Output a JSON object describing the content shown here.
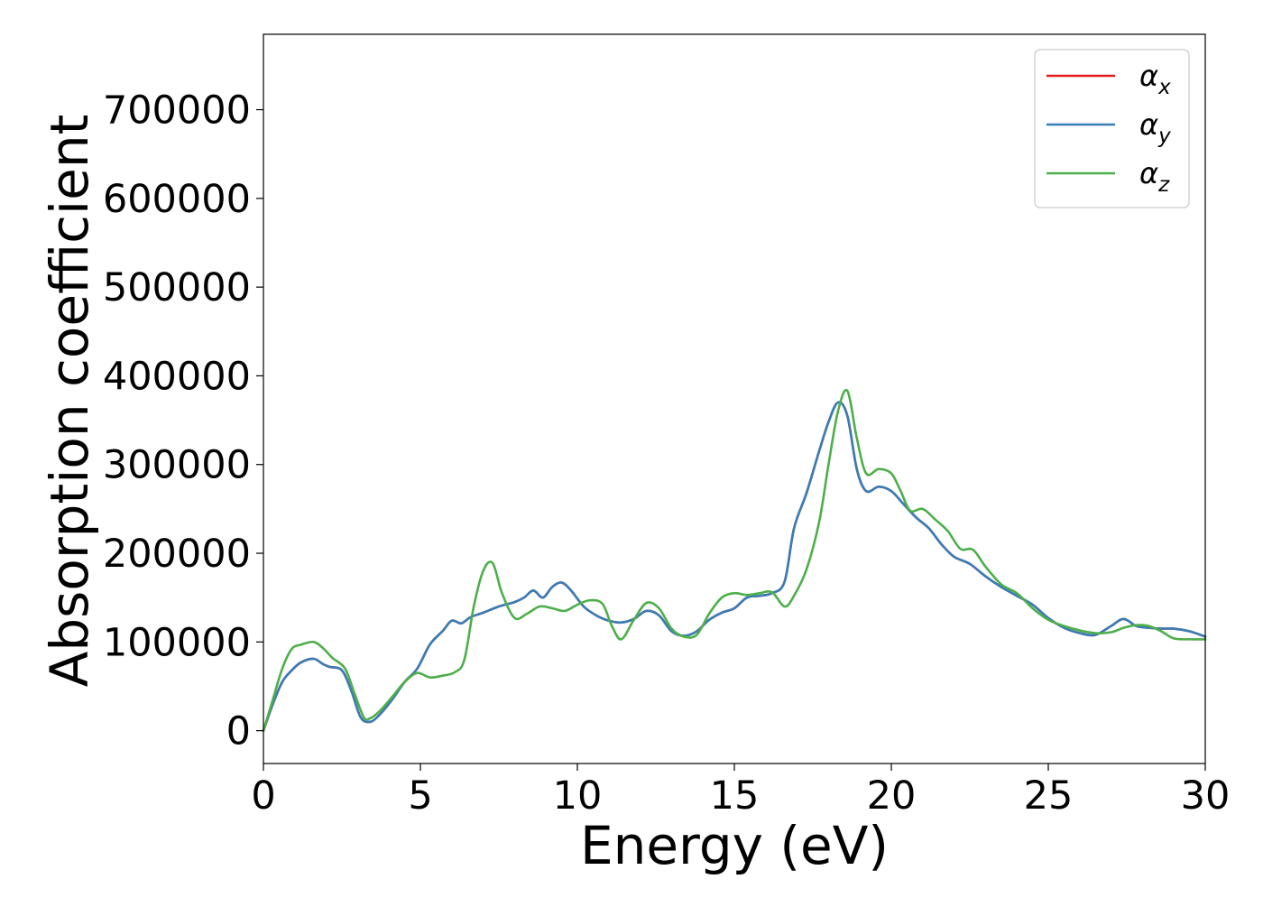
{
  "chart_data": {
    "type": "line",
    "title": "",
    "xlabel": "Energy (eV)",
    "ylabel": "Absorption coefficient",
    "xlim": [
      0,
      30
    ],
    "ylim": [
      -37000,
      785000
    ],
    "xticks": [
      "0",
      "5",
      "10",
      "15",
      "20",
      "25",
      "30"
    ],
    "yticks": [
      "0",
      "100000",
      "200000",
      "300000",
      "400000",
      "500000",
      "600000",
      "700000"
    ],
    "grid": false,
    "legend_position": "top-right",
    "series": [
      {
        "name": "α_x",
        "legend_base": "α",
        "legend_sub": "x",
        "color": "#e41a1c",
        "x": [
          0,
          0.3,
          0.6,
          0.9,
          1.2,
          1.6,
          1.9,
          2.1,
          2.5,
          2.8,
          3.1,
          3.4,
          3.7,
          4.1,
          4.5,
          4.9,
          5.3,
          5.7,
          6.0,
          6.3,
          6.6,
          7.0,
          7.5,
          8.0,
          8.3,
          8.6,
          8.9,
          9.2,
          9.5,
          9.8,
          10.2,
          10.6,
          11.0,
          11.4,
          11.8,
          12.2,
          12.6,
          13.0,
          13.4,
          13.8,
          14.2,
          14.6,
          15.0,
          15.4,
          15.8,
          16.2,
          16.6,
          16.9,
          17.3,
          17.7,
          18.0,
          18.3,
          18.6,
          18.9,
          19.2,
          19.6,
          20.0,
          20.4,
          20.8,
          21.2,
          21.6,
          22.0,
          22.5,
          23.0,
          23.5,
          24.0,
          24.5,
          25.0,
          25.5,
          26.0,
          26.5,
          27.0,
          27.4,
          27.8,
          28.2,
          28.6,
          29.0,
          29.5,
          30.0
        ],
        "y": [
          0,
          30000,
          55000,
          68000,
          77000,
          81000,
          75000,
          72000,
          68000,
          45000,
          15000,
          10000,
          18000,
          35000,
          55000,
          70000,
          97000,
          112000,
          124000,
          121000,
          128000,
          133000,
          140000,
          145000,
          150000,
          158000,
          150000,
          162000,
          167000,
          158000,
          140000,
          130000,
          124000,
          122000,
          126000,
          135000,
          130000,
          112000,
          107000,
          112000,
          125000,
          133000,
          138000,
          150000,
          152000,
          155000,
          168000,
          228000,
          268000,
          315000,
          348000,
          370000,
          355000,
          295000,
          270000,
          275000,
          270000,
          255000,
          240000,
          228000,
          210000,
          196000,
          188000,
          174000,
          162000,
          152000,
          142000,
          127000,
          116000,
          110000,
          108000,
          118000,
          126000,
          118000,
          116000,
          115000,
          115000,
          112000,
          106000
        ]
      },
      {
        "name": "α_y",
        "legend_base": "α",
        "legend_sub": "y",
        "color": "#377eb8",
        "x": [
          0,
          0.3,
          0.6,
          0.9,
          1.2,
          1.6,
          1.9,
          2.1,
          2.5,
          2.8,
          3.1,
          3.4,
          3.7,
          4.1,
          4.5,
          4.9,
          5.3,
          5.7,
          6.0,
          6.3,
          6.6,
          7.0,
          7.5,
          8.0,
          8.3,
          8.6,
          8.9,
          9.2,
          9.5,
          9.8,
          10.2,
          10.6,
          11.0,
          11.4,
          11.8,
          12.2,
          12.6,
          13.0,
          13.4,
          13.8,
          14.2,
          14.6,
          15.0,
          15.4,
          15.8,
          16.2,
          16.6,
          16.9,
          17.3,
          17.7,
          18.0,
          18.3,
          18.6,
          18.9,
          19.2,
          19.6,
          20.0,
          20.4,
          20.8,
          21.2,
          21.6,
          22.0,
          22.5,
          23.0,
          23.5,
          24.0,
          24.5,
          25.0,
          25.5,
          26.0,
          26.5,
          27.0,
          27.4,
          27.8,
          28.2,
          28.6,
          29.0,
          29.5,
          30.0
        ],
        "y": [
          0,
          30000,
          55000,
          68000,
          77000,
          81000,
          75000,
          72000,
          68000,
          45000,
          15000,
          10000,
          18000,
          35000,
          55000,
          70000,
          97000,
          112000,
          124000,
          121000,
          128000,
          133000,
          140000,
          145000,
          150000,
          158000,
          150000,
          162000,
          167000,
          158000,
          140000,
          130000,
          124000,
          122000,
          126000,
          135000,
          130000,
          112000,
          107000,
          112000,
          125000,
          133000,
          138000,
          150000,
          152000,
          155000,
          168000,
          228000,
          268000,
          315000,
          348000,
          370000,
          355000,
          295000,
          270000,
          275000,
          270000,
          255000,
          240000,
          228000,
          210000,
          196000,
          188000,
          174000,
          162000,
          152000,
          142000,
          127000,
          116000,
          110000,
          108000,
          118000,
          126000,
          118000,
          116000,
          115000,
          115000,
          112000,
          106000
        ]
      },
      {
        "name": "α_z",
        "legend_base": "α",
        "legend_sub": "z",
        "color": "#4daf4a",
        "x": [
          0,
          0.3,
          0.6,
          0.9,
          1.2,
          1.6,
          1.9,
          2.2,
          2.6,
          2.9,
          3.2,
          3.4,
          3.7,
          4.1,
          4.5,
          4.9,
          5.3,
          5.7,
          6.1,
          6.4,
          6.7,
          7.0,
          7.3,
          7.6,
          8.0,
          8.4,
          8.8,
          9.2,
          9.6,
          10.0,
          10.4,
          10.8,
          11.1,
          11.4,
          11.8,
          12.2,
          12.6,
          13.0,
          13.4,
          13.8,
          14.2,
          14.6,
          15.0,
          15.4,
          15.8,
          16.2,
          16.6,
          16.9,
          17.3,
          17.7,
          18.0,
          18.3,
          18.6,
          18.9,
          19.2,
          19.6,
          20.0,
          20.3,
          20.6,
          21.0,
          21.4,
          21.8,
          22.2,
          22.6,
          23.0,
          23.5,
          24.0,
          24.5,
          25.0,
          25.5,
          26.0,
          26.5,
          27.0,
          27.4,
          27.8,
          28.2,
          28.6,
          29.0,
          29.5,
          30.0
        ],
        "y": [
          0,
          35000,
          70000,
          92000,
          97000,
          100000,
          93000,
          82000,
          70000,
          42000,
          15000,
          14000,
          22000,
          38000,
          55000,
          65000,
          60000,
          62000,
          66000,
          80000,
          140000,
          180000,
          189000,
          155000,
          127000,
          132000,
          140000,
          138000,
          135000,
          142000,
          147000,
          143000,
          118000,
          103000,
          125000,
          144000,
          138000,
          115000,
          106000,
          108000,
          132000,
          150000,
          155000,
          153000,
          155000,
          156000,
          140000,
          152000,
          182000,
          235000,
          300000,
          360000,
          383000,
          330000,
          290000,
          295000,
          290000,
          270000,
          248000,
          250000,
          238000,
          225000,
          205000,
          204000,
          185000,
          165000,
          155000,
          138000,
          125000,
          118000,
          113000,
          110000,
          111000,
          116000,
          119000,
          118000,
          112000,
          104000,
          103000,
          103000
        ]
      }
    ]
  }
}
